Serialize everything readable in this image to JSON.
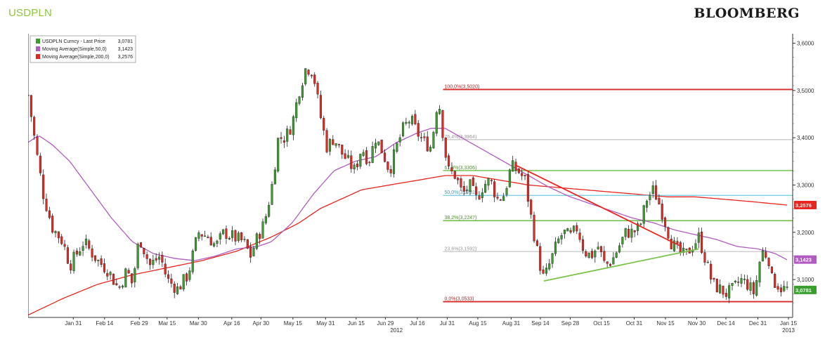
{
  "header": {
    "ticker": "USDPLN",
    "brand": "BLOOMBERG"
  },
  "chart_data": {
    "type": "candlestick",
    "title": "USDPLN",
    "ylim": [
      3.02,
      3.62
    ],
    "y_ticks": [
      "3,6000",
      "3,5000",
      "3,4000",
      "3,3000",
      "3,2000",
      "3,1000"
    ],
    "y_tick_values": [
      3.6,
      3.5,
      3.4,
      3.3,
      3.2,
      3.1
    ],
    "x_ticks": [
      {
        "label": "Jan 31",
        "t": 0.065
      },
      {
        "label": "Feb 14",
        "t": 0.11
      },
      {
        "label": "Feb 29",
        "t": 0.16
      },
      {
        "label": "Mar 15",
        "t": 0.2
      },
      {
        "label": "Mar 30",
        "t": 0.245
      },
      {
        "label": "Apr 16",
        "t": 0.293
      },
      {
        "label": "Apr 30",
        "t": 0.335
      },
      {
        "label": "May 15",
        "t": 0.381
      },
      {
        "label": "May 31",
        "t": 0.428
      },
      {
        "label": "Jun 15",
        "t": 0.472
      },
      {
        "label": "Jun 29",
        "t": 0.514
      },
      {
        "label": "Jul 16",
        "t": 0.56
      },
      {
        "label": "Jul 31",
        "t": 0.603
      },
      {
        "label": "Aug 15",
        "t": 0.647
      },
      {
        "label": "Aug 31",
        "t": 0.695
      },
      {
        "label": "Sep 14",
        "t": 0.737
      },
      {
        "label": "Sep 28",
        "t": 0.78
      },
      {
        "label": "Oct 15",
        "t": 0.825
      },
      {
        "label": "Oct 31",
        "t": 0.872
      },
      {
        "label": "Nov 15",
        "t": 0.917
      },
      {
        "label": "Nov 30",
        "t": 0.962
      },
      {
        "label": "Dec 14",
        "t": 1.004
      },
      {
        "label": "Dec 31",
        "t": 1.05
      },
      {
        "label": "Jan 15",
        "t": 1.094
      }
    ],
    "year_labels": [
      {
        "label": "2012",
        "t": 0.53
      },
      {
        "label": "2013",
        "t": 1.094
      }
    ],
    "series": [
      {
        "name": "USDPLN Curncy - Last Price",
        "last": "3,0781",
        "color": "#3a9e2e"
      },
      {
        "name": "Moving Average(Simple,50,0)",
        "last": "3,1423",
        "color": "#b05cc0"
      },
      {
        "name": "Moving Average(Simple,200,0)",
        "last": "3,2576",
        "color": "#e8251f"
      }
    ],
    "price_path": [
      [
        0.0,
        3.49
      ],
      [
        0.012,
        3.37
      ],
      [
        0.022,
        3.28
      ],
      [
        0.035,
        3.21
      ],
      [
        0.05,
        3.18
      ],
      [
        0.06,
        3.13
      ],
      [
        0.08,
        3.18
      ],
      [
        0.1,
        3.14
      ],
      [
        0.115,
        3.12
      ],
      [
        0.13,
        3.08
      ],
      [
        0.142,
        3.12
      ],
      [
        0.15,
        3.09
      ],
      [
        0.16,
        3.19
      ],
      [
        0.175,
        3.13
      ],
      [
        0.19,
        3.15
      ],
      [
        0.2,
        3.1
      ],
      [
        0.215,
        3.08
      ],
      [
        0.23,
        3.11
      ],
      [
        0.245,
        3.2
      ],
      [
        0.26,
        3.19
      ],
      [
        0.27,
        3.17
      ],
      [
        0.282,
        3.2
      ],
      [
        0.295,
        3.19
      ],
      [
        0.31,
        3.18
      ],
      [
        0.32,
        3.15
      ],
      [
        0.33,
        3.19
      ],
      [
        0.34,
        3.22
      ],
      [
        0.35,
        3.29
      ],
      [
        0.36,
        3.4
      ],
      [
        0.37,
        3.4
      ],
      [
        0.38,
        3.43
      ],
      [
        0.39,
        3.5
      ],
      [
        0.4,
        3.55
      ],
      [
        0.41,
        3.54
      ],
      [
        0.42,
        3.45
      ],
      [
        0.43,
        3.38
      ],
      [
        0.44,
        3.4
      ],
      [
        0.45,
        3.37
      ],
      [
        0.46,
        3.35
      ],
      [
        0.47,
        3.33
      ],
      [
        0.48,
        3.38
      ],
      [
        0.49,
        3.35
      ],
      [
        0.5,
        3.4
      ],
      [
        0.51,
        3.37
      ],
      [
        0.52,
        3.33
      ],
      [
        0.53,
        3.38
      ],
      [
        0.54,
        3.42
      ],
      [
        0.55,
        3.44
      ],
      [
        0.56,
        3.41
      ],
      [
        0.57,
        3.39
      ],
      [
        0.58,
        3.38
      ],
      [
        0.59,
        3.49
      ],
      [
        0.6,
        3.37
      ],
      [
        0.605,
        3.33
      ],
      [
        0.615,
        3.32
      ],
      [
        0.625,
        3.28
      ],
      [
        0.635,
        3.3
      ],
      [
        0.645,
        3.27
      ],
      [
        0.655,
        3.3
      ],
      [
        0.665,
        3.31
      ],
      [
        0.675,
        3.27
      ],
      [
        0.685,
        3.28
      ],
      [
        0.695,
        3.34
      ],
      [
        0.705,
        3.33
      ],
      [
        0.715,
        3.31
      ],
      [
        0.725,
        3.22
      ],
      [
        0.735,
        3.14
      ],
      [
        0.742,
        3.1
      ],
      [
        0.752,
        3.14
      ],
      [
        0.762,
        3.18
      ],
      [
        0.77,
        3.2
      ],
      [
        0.78,
        3.19
      ],
      [
        0.79,
        3.21
      ],
      [
        0.8,
        3.16
      ],
      [
        0.81,
        3.15
      ],
      [
        0.82,
        3.17
      ],
      [
        0.83,
        3.13
      ],
      [
        0.84,
        3.14
      ],
      [
        0.85,
        3.17
      ],
      [
        0.86,
        3.2
      ],
      [
        0.87,
        3.2
      ],
      [
        0.88,
        3.21
      ],
      [
        0.89,
        3.27
      ],
      [
        0.9,
        3.29
      ],
      [
        0.908,
        3.26
      ],
      [
        0.915,
        3.23
      ],
      [
        0.925,
        3.18
      ],
      [
        0.935,
        3.16
      ],
      [
        0.945,
        3.15
      ],
      [
        0.955,
        3.17
      ],
      [
        0.965,
        3.19
      ],
      [
        0.975,
        3.14
      ],
      [
        0.985,
        3.09
      ],
      [
        0.995,
        3.08
      ],
      [
        1.005,
        3.07
      ],
      [
        1.015,
        3.08
      ],
      [
        1.025,
        3.1
      ],
      [
        1.035,
        3.09
      ],
      [
        1.045,
        3.07
      ],
      [
        1.055,
        3.16
      ],
      [
        1.065,
        3.15
      ],
      [
        1.07,
        3.1
      ],
      [
        1.078,
        3.09
      ],
      [
        1.085,
        3.08
      ],
      [
        1.092,
        3.08
      ]
    ],
    "ma50_path": [
      [
        0.0,
        3.39
      ],
      [
        0.015,
        3.405
      ],
      [
        0.035,
        3.385
      ],
      [
        0.06,
        3.35
      ],
      [
        0.09,
        3.29
      ],
      [
        0.12,
        3.23
      ],
      [
        0.15,
        3.18
      ],
      [
        0.18,
        3.155
      ],
      [
        0.21,
        3.145
      ],
      [
        0.24,
        3.14
      ],
      [
        0.27,
        3.15
      ],
      [
        0.3,
        3.165
      ],
      [
        0.33,
        3.17
      ],
      [
        0.35,
        3.18
      ],
      [
        0.38,
        3.22
      ],
      [
        0.41,
        3.28
      ],
      [
        0.44,
        3.33
      ],
      [
        0.47,
        3.35
      ],
      [
        0.5,
        3.36
      ],
      [
        0.53,
        3.39
      ],
      [
        0.56,
        3.41
      ],
      [
        0.58,
        3.42
      ],
      [
        0.6,
        3.42
      ],
      [
        0.63,
        3.395
      ],
      [
        0.66,
        3.37
      ],
      [
        0.69,
        3.345
      ],
      [
        0.72,
        3.32
      ],
      [
        0.75,
        3.295
      ],
      [
        0.78,
        3.275
      ],
      [
        0.81,
        3.26
      ],
      [
        0.84,
        3.245
      ],
      [
        0.87,
        3.23
      ],
      [
        0.9,
        3.22
      ],
      [
        0.93,
        3.205
      ],
      [
        0.96,
        3.195
      ],
      [
        0.99,
        3.185
      ],
      [
        1.02,
        3.17
      ],
      [
        1.05,
        3.165
      ],
      [
        1.075,
        3.155
      ],
      [
        1.092,
        3.142
      ]
    ],
    "ma200_path": [
      [
        0.0,
        3.025
      ],
      [
        0.05,
        3.06
      ],
      [
        0.1,
        3.09
      ],
      [
        0.15,
        3.11
      ],
      [
        0.2,
        3.125
      ],
      [
        0.25,
        3.14
      ],
      [
        0.3,
        3.16
      ],
      [
        0.35,
        3.19
      ],
      [
        0.39,
        3.22
      ],
      [
        0.42,
        3.25
      ],
      [
        0.45,
        3.27
      ],
      [
        0.48,
        3.29
      ],
      [
        0.52,
        3.3
      ],
      [
        0.56,
        3.31
      ],
      [
        0.6,
        3.32
      ],
      [
        0.64,
        3.32
      ],
      [
        0.68,
        3.31
      ],
      [
        0.72,
        3.3
      ],
      [
        0.76,
        3.295
      ],
      [
        0.8,
        3.29
      ],
      [
        0.84,
        3.285
      ],
      [
        0.88,
        3.28
      ],
      [
        0.92,
        3.275
      ],
      [
        0.96,
        3.275
      ],
      [
        1.0,
        3.27
      ],
      [
        1.04,
        3.265
      ],
      [
        1.092,
        3.2576
      ]
    ],
    "fib_levels": [
      {
        "label": "100,0%(3,5020)",
        "value": 3.502,
        "color": "#d62a2a",
        "text_color": "#c01c1c"
      },
      {
        "label": "76,4%(3,3964)",
        "value": 3.396,
        "color": "#c8c8c8",
        "text_color": "#999999"
      },
      {
        "label": "61,8%(3,3306)",
        "value": 3.3306,
        "color": "#5cb82e",
        "text_color": "#4a9a20"
      },
      {
        "label": "50,0%(3,2781)",
        "value": 3.2781,
        "color": "#6ccbe0",
        "text_color": "#3aa0c0"
      },
      {
        "label": "38,2%(3,2247)",
        "value": 3.2247,
        "color": "#5cb82e",
        "text_color": "#4a9a20"
      },
      {
        "label": "23,6%(3,1592)",
        "value": 3.1592,
        "color": "#c8c8c8",
        "text_color": "#999999"
      },
      {
        "label": "0,0%(3,0533)",
        "value": 3.0533,
        "color": "#d62a2a",
        "text_color": "#c01c1c"
      }
    ],
    "fib_start_t": 0.597,
    "trendlines": [
      {
        "from": [
          0.7,
          3.343
        ],
        "to": [
          0.94,
          3.17
        ],
        "color": "#e8251f"
      },
      {
        "from": [
          0.742,
          3.097
        ],
        "to": [
          0.965,
          3.165
        ],
        "color": "#7ac24a"
      }
    ],
    "badges": [
      {
        "text": "3,2576",
        "value": 3.2576,
        "color": "#e8251f"
      },
      {
        "text": "3,1423",
        "value": 3.1423,
        "color": "#b05cc0"
      },
      {
        "text": "3,0781",
        "value": 3.0781,
        "color": "#3a9e2e"
      }
    ],
    "grid": false,
    "legend_position": "top-left"
  }
}
